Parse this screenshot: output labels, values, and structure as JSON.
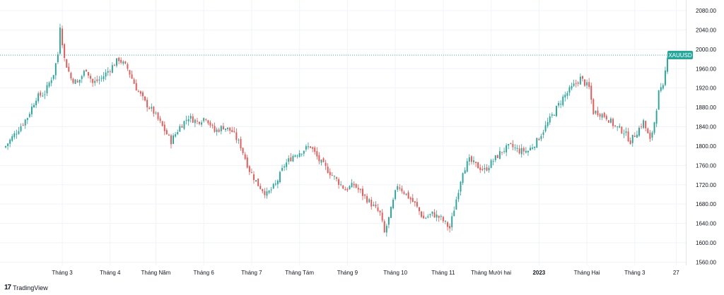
{
  "chart_data": {
    "type": "candlestick",
    "symbol": "XAUUSD",
    "last_price_label": "XAUUSD",
    "last_price": 1988,
    "ylim": [
      1540,
      2100
    ],
    "y_ticks": [
      1560,
      1600,
      1640,
      1680,
      1720,
      1760,
      1800,
      1840,
      1880,
      1920,
      1960,
      2000,
      2040,
      2080
    ],
    "y_tick_labels": [
      "1560.00",
      "1600.00",
      "1640.00",
      "1680.00",
      "1720.00",
      "1760.00",
      "1800.00",
      "1840.00",
      "1880.00",
      "1920.00",
      "1960.00",
      "2000.00",
      "2040.00",
      "2080.00"
    ],
    "x_labels": [
      {
        "label": "Tháng 3",
        "index": 26,
        "bold": false
      },
      {
        "label": "Tháng 4",
        "index": 48,
        "bold": false
      },
      {
        "label": "Tháng Năm",
        "index": 69,
        "bold": false
      },
      {
        "label": "Tháng 6",
        "index": 91,
        "bold": false
      },
      {
        "label": "Tháng 7",
        "index": 113,
        "bold": false
      },
      {
        "label": "Tháng Tám",
        "index": 135,
        "bold": false
      },
      {
        "label": "Tháng 9",
        "index": 157,
        "bold": false
      },
      {
        "label": "Tháng 10",
        "index": 179,
        "bold": false
      },
      {
        "label": "Tháng 11",
        "index": 201,
        "bold": false
      },
      {
        "label": "Tháng Mười hai",
        "index": 223,
        "bold": false
      },
      {
        "label": "2023",
        "index": 245,
        "bold": true
      },
      {
        "label": "Tháng Hai",
        "index": 267,
        "bold": false
      },
      {
        "label": "Tháng 3",
        "index": 289,
        "bold": false
      },
      {
        "label": "27",
        "index": 308,
        "bold": false
      }
    ],
    "anchors": [
      [
        0,
        1800
      ],
      [
        5,
        1830
      ],
      [
        10,
        1860
      ],
      [
        14,
        1900
      ],
      [
        18,
        1910
      ],
      [
        22,
        1950
      ],
      [
        24,
        1990
      ],
      [
        25,
        2050
      ],
      [
        27,
        1980
      ],
      [
        30,
        1940
      ],
      [
        33,
        1930
      ],
      [
        37,
        1960
      ],
      [
        40,
        1930
      ],
      [
        44,
        1940
      ],
      [
        48,
        1960
      ],
      [
        52,
        1980
      ],
      [
        56,
        1960
      ],
      [
        60,
        1920
      ],
      [
        64,
        1890
      ],
      [
        68,
        1870
      ],
      [
        72,
        1840
      ],
      [
        76,
        1810
      ],
      [
        80,
        1840
      ],
      [
        84,
        1860
      ],
      [
        88,
        1850
      ],
      [
        92,
        1860
      ],
      [
        96,
        1830
      ],
      [
        100,
        1840
      ],
      [
        104,
        1830
      ],
      [
        108,
        1800
      ],
      [
        112,
        1750
      ],
      [
        116,
        1720
      ],
      [
        120,
        1700
      ],
      [
        124,
        1720
      ],
      [
        128,
        1760
      ],
      [
        132,
        1780
      ],
      [
        136,
        1790
      ],
      [
        140,
        1800
      ],
      [
        144,
        1770
      ],
      [
        148,
        1750
      ],
      [
        152,
        1730
      ],
      [
        156,
        1710
      ],
      [
        160,
        1720
      ],
      [
        164,
        1700
      ],
      [
        168,
        1680
      ],
      [
        172,
        1660
      ],
      [
        174,
        1620
      ],
      [
        176,
        1650
      ],
      [
        180,
        1720
      ],
      [
        184,
        1700
      ],
      [
        188,
        1680
      ],
      [
        192,
        1650
      ],
      [
        196,
        1660
      ],
      [
        200,
        1650
      ],
      [
        204,
        1630
      ],
      [
        206,
        1670
      ],
      [
        210,
        1750
      ],
      [
        213,
        1770
      ],
      [
        216,
        1760
      ],
      [
        220,
        1750
      ],
      [
        224,
        1770
      ],
      [
        228,
        1790
      ],
      [
        232,
        1800
      ],
      [
        236,
        1790
      ],
      [
        240,
        1790
      ],
      [
        244,
        1810
      ],
      [
        248,
        1840
      ],
      [
        252,
        1870
      ],
      [
        256,
        1900
      ],
      [
        260,
        1920
      ],
      [
        264,
        1940
      ],
      [
        268,
        1920
      ],
      [
        270,
        1870
      ],
      [
        272,
        1870
      ],
      [
        276,
        1860
      ],
      [
        280,
        1840
      ],
      [
        284,
        1830
      ],
      [
        287,
        1810
      ],
      [
        290,
        1830
      ],
      [
        293,
        1850
      ],
      [
        296,
        1810
      ],
      [
        298,
        1850
      ],
      [
        300,
        1910
      ],
      [
        302,
        1920
      ],
      [
        304,
        1988
      ]
    ],
    "colors": {
      "up": "#26a69a",
      "down": "#ef5350",
      "grid": "#f0f3fa",
      "price_line": "#26a69a",
      "price_tag_bg": "#26a69a",
      "axis_text": "#131722"
    }
  },
  "branding": {
    "logo": "17",
    "name": "TradingView"
  }
}
